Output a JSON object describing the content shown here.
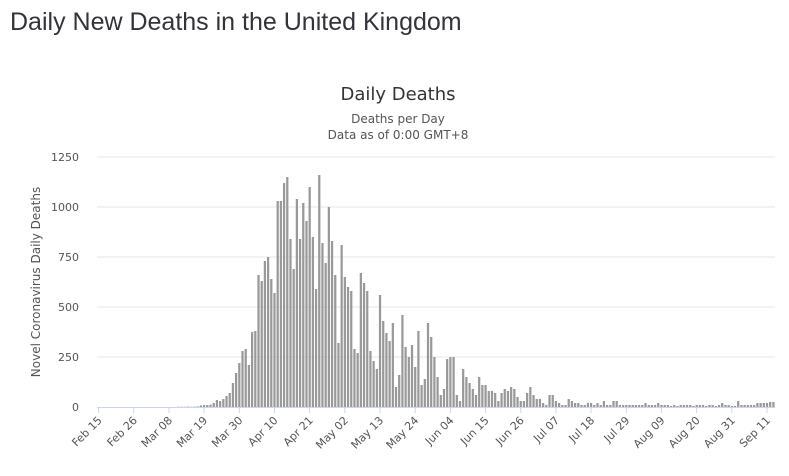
{
  "page": {
    "title": "Daily New Deaths in the United Kingdom"
  },
  "chart_data": {
    "type": "bar",
    "title": "Daily Deaths",
    "subtitle_lines": [
      "Deaths per Day",
      "Data as of 0:00 GMT+8"
    ],
    "ylabel": "Novel Coronavirus Daily Deaths",
    "xlabel": "",
    "ylim": [
      0,
      1250
    ],
    "yticks": [
      0,
      250,
      500,
      750,
      1000,
      1250
    ],
    "grid": true,
    "legend": "none",
    "bar_color": "#999999",
    "x_start_date": "2020-02-15",
    "xtick_labels": [
      "Feb 15",
      "Feb 26",
      "Mar 08",
      "Mar 19",
      "Mar 30",
      "Apr 10",
      "Apr 21",
      "May 02",
      "May 13",
      "May 24",
      "Jun 04",
      "Jun 15",
      "Jun 26",
      "Jul 07",
      "Jul 18",
      "Jul 29",
      "Aug 09",
      "Aug 20",
      "Aug 31",
      "Sep 11"
    ],
    "xtick_interval_days": 11,
    "values": [
      0,
      0,
      0,
      0,
      0,
      0,
      0,
      0,
      0,
      0,
      0,
      0,
      0,
      0,
      0,
      0,
      0,
      0,
      0,
      0,
      0,
      0,
      0,
      0,
      0,
      1,
      1,
      1,
      2,
      1,
      2,
      3,
      8,
      10,
      10,
      12,
      20,
      35,
      30,
      40,
      55,
      70,
      120,
      170,
      220,
      280,
      290,
      210,
      375,
      380,
      660,
      630,
      730,
      750,
      640,
      570,
      1030,
      1030,
      1120,
      1150,
      840,
      690,
      1040,
      840,
      1020,
      930,
      1100,
      850,
      590,
      1160,
      820,
      720,
      1000,
      830,
      660,
      320,
      810,
      650,
      600,
      580,
      290,
      270,
      670,
      620,
      580,
      280,
      230,
      190,
      560,
      430,
      370,
      330,
      420,
      100,
      160,
      460,
      300,
      250,
      310,
      200,
      380,
      110,
      140,
      420,
      350,
      250,
      150,
      60,
      90,
      240,
      250,
      250,
      60,
      30,
      190,
      150,
      120,
      90,
      60,
      150,
      110,
      110,
      80,
      80,
      70,
      30,
      70,
      90,
      80,
      100,
      90,
      50,
      30,
      30,
      70,
      100,
      60,
      40,
      40,
      20,
      10,
      60,
      60,
      30,
      20,
      10,
      10,
      40,
      30,
      20,
      20,
      10,
      10,
      20,
      20,
      10,
      20,
      10,
      30,
      10,
      10,
      30,
      30,
      10,
      10,
      10,
      10,
      10,
      10,
      10,
      10,
      20,
      10,
      10,
      10,
      20,
      10,
      10,
      10,
      5,
      10,
      5,
      10,
      10,
      10,
      10,
      5,
      10,
      10,
      10,
      5,
      10,
      10,
      5,
      10,
      20,
      10,
      10,
      5,
      5,
      30,
      10,
      10,
      10,
      10,
      10,
      20,
      20,
      20,
      20,
      25,
      25
    ]
  }
}
